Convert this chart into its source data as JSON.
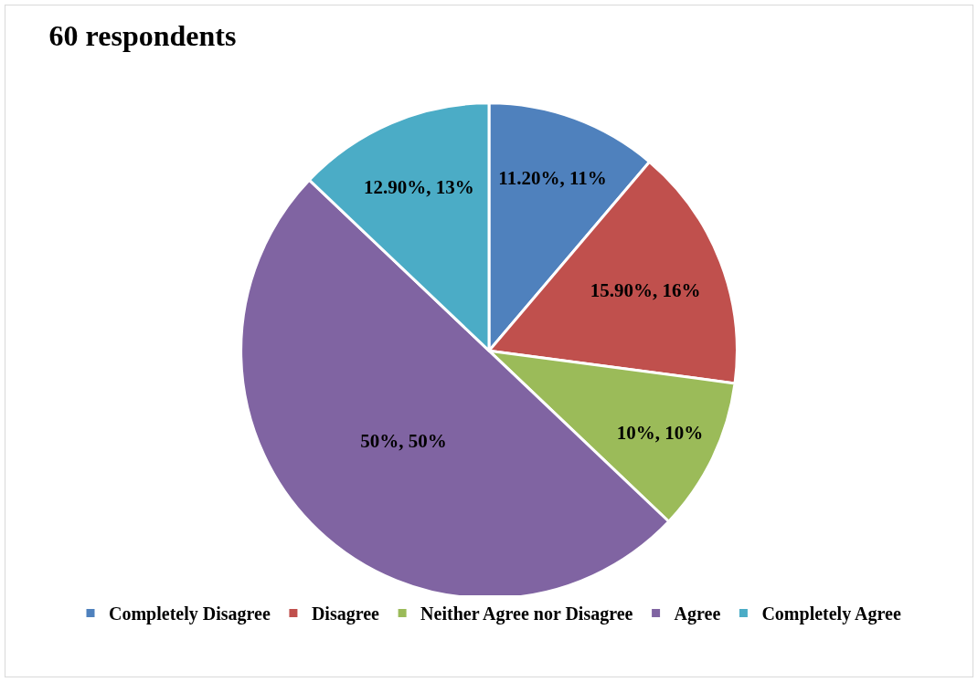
{
  "chart_data": {
    "type": "pie",
    "title": "60 respondents",
    "categories": [
      "Completely Disagree",
      "Disagree",
      "Neither Agree nor Disagree",
      "Agree",
      "Completely Agree"
    ],
    "values": [
      11.2,
      15.9,
      10,
      50,
      12.9
    ],
    "value_labels": [
      "11.20%, 11%",
      "15.90%, 16%",
      "10%, 10%",
      "50%, 50%",
      "12.90%, 13%"
    ],
    "colors": [
      "#4f81bd",
      "#c0504d",
      "#9bbb59",
      "#8064a2",
      "#4bacc6"
    ],
    "legend": "bottom"
  }
}
